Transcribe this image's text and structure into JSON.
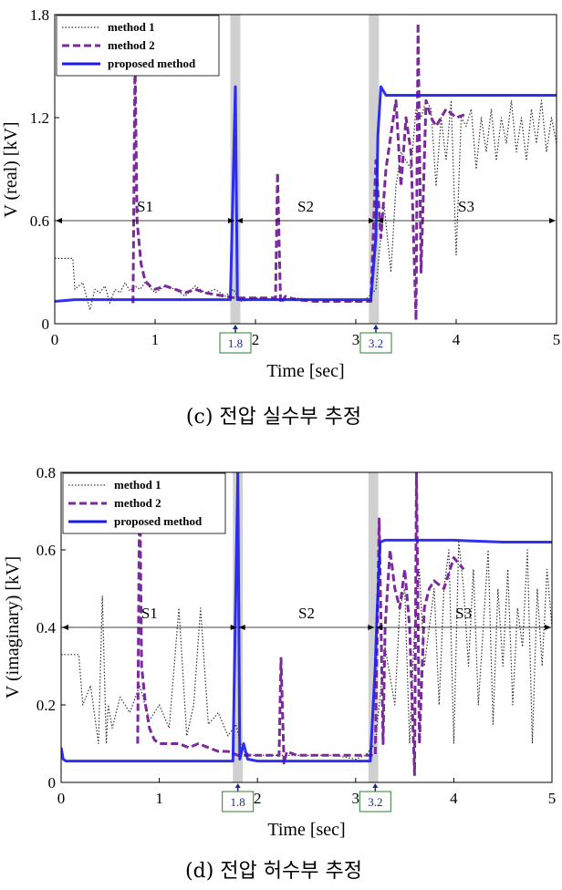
{
  "colors": {
    "method1": "#333333",
    "method2": "#7a2a9a",
    "proposed": "#1a1aee",
    "band": "#d0d0d0",
    "marker_box": "#2e7d32",
    "marker_text": "#1a2a8a"
  },
  "chart_data": [
    {
      "id": "c",
      "type": "line",
      "caption": "(c) 전압 실수부 추정",
      "xlabel": "Time [sec]",
      "ylabel": "V (real) [kV]",
      "xlim": [
        0,
        5
      ],
      "ylim": [
        0,
        1.8
      ],
      "xticks": [
        "0",
        "1",
        "2",
        "3",
        "4",
        "5"
      ],
      "yticks": [
        "0",
        "0.6",
        "1.2",
        "1.8"
      ],
      "legend": {
        "position": "top-left",
        "entries": [
          "method 1",
          "method 2",
          "proposed method"
        ]
      },
      "segments": [
        {
          "label": "S1",
          "from": 0,
          "to": 1.8,
          "y": 0.6
        },
        {
          "label": "S2",
          "from": 1.8,
          "to": 3.2,
          "y": 0.6
        },
        {
          "label": "S3",
          "from": 3.2,
          "to": 5,
          "y": 0.6
        }
      ],
      "markers": [
        "1.8",
        "3.2"
      ],
      "bands": [
        [
          1.75,
          1.85
        ],
        [
          3.13,
          3.23
        ]
      ],
      "series": [
        {
          "name": "method 1",
          "style": "dotted",
          "x": [
            0,
            0.18,
            0.2,
            0.28,
            0.35,
            0.4,
            0.45,
            0.5,
            0.55,
            0.6,
            0.65,
            0.7,
            0.75,
            0.8,
            0.85,
            0.9,
            1.0,
            1.1,
            1.2,
            1.3,
            1.4,
            1.5,
            1.6,
            1.7,
            1.78,
            1.85,
            1.95,
            2.0,
            2.2,
            2.4,
            2.6,
            2.8,
            3.0,
            3.1,
            3.2,
            3.28,
            3.35,
            3.4,
            3.45,
            3.5,
            3.55,
            3.6,
            3.65,
            3.7,
            3.75,
            3.8,
            3.85,
            3.9,
            3.95,
            4.0,
            4.05,
            4.1,
            4.15,
            4.2,
            4.25,
            4.3,
            4.35,
            4.4,
            4.45,
            4.5,
            4.55,
            4.6,
            4.65,
            4.7,
            4.75,
            4.8,
            4.85,
            4.9,
            4.95,
            5.0
          ],
          "y": [
            0.38,
            0.38,
            0.2,
            0.24,
            0.08,
            0.2,
            0.18,
            0.22,
            0.12,
            0.2,
            0.18,
            0.24,
            0.19,
            0.22,
            0.2,
            0.24,
            0.18,
            0.22,
            0.2,
            0.16,
            0.22,
            0.18,
            0.2,
            0.16,
            0.2,
            0.13,
            0.14,
            0.15,
            0.14,
            0.15,
            0.14,
            0.14,
            0.13,
            0.14,
            0.2,
            0.7,
            0.3,
            0.8,
            1.0,
            0.95,
            0.9,
            1.25,
            1.2,
            1.3,
            1.25,
            0.8,
            1.2,
            0.95,
            1.3,
            0.4,
            1.2,
            1.15,
            1.25,
            0.9,
            1.2,
            1.0,
            1.25,
            0.95,
            1.2,
            1.05,
            1.3,
            1.0,
            1.2,
            0.95,
            1.25,
            1.05,
            1.3,
            1.0,
            1.2,
            1.05
          ]
        },
        {
          "name": "method 2",
          "style": "dashed",
          "x": [
            0.78,
            0.8,
            0.82,
            0.86,
            0.9,
            0.95,
            1.0,
            1.1,
            1.2,
            1.3,
            1.4,
            1.5,
            1.6,
            1.7,
            1.8,
            1.85,
            2.2,
            2.22,
            2.25,
            2.3,
            2.4,
            2.6,
            2.8,
            3.0,
            3.15,
            3.2,
            3.25,
            3.3,
            3.35,
            3.4,
            3.45,
            3.5,
            3.55,
            3.6,
            3.62,
            3.65,
            3.7,
            3.75,
            3.8,
            3.9,
            4.0,
            4.1
          ],
          "y": [
            0.12,
            1.55,
            0.6,
            0.35,
            0.25,
            0.22,
            0.2,
            0.22,
            0.2,
            0.18,
            0.2,
            0.18,
            0.17,
            0.16,
            0.15,
            0.15,
            0.15,
            0.88,
            0.12,
            0.16,
            0.14,
            0.13,
            0.13,
            0.13,
            0.13,
            0.95,
            0.5,
            0.9,
            1.1,
            1.3,
            0.8,
            1.2,
            1.0,
            0.02,
            1.75,
            0.3,
            1.3,
            1.2,
            1.15,
            1.25,
            1.2,
            1.22
          ]
        },
        {
          "name": "proposed method",
          "style": "solid",
          "x": [
            0,
            0.2,
            0.5,
            1.0,
            1.5,
            1.75,
            1.8,
            1.82,
            1.85,
            2.0,
            2.5,
            3.0,
            3.15,
            3.2,
            3.22,
            3.25,
            3.3,
            3.5,
            4.0,
            4.5,
            5.0
          ],
          "y": [
            0.13,
            0.14,
            0.14,
            0.14,
            0.14,
            0.14,
            1.38,
            0.14,
            0.14,
            0.14,
            0.14,
            0.14,
            0.14,
            0.5,
            1.1,
            1.38,
            1.33,
            1.33,
            1.33,
            1.33,
            1.33
          ]
        }
      ]
    },
    {
      "id": "d",
      "type": "line",
      "caption": "(d) 전압 허수부 추정",
      "xlabel": "Time [sec]",
      "ylabel": "V (imaginary) [kV]",
      "xlim": [
        0,
        5
      ],
      "ylim": [
        0,
        0.8
      ],
      "xticks": [
        "0",
        "1",
        "2",
        "3",
        "4",
        "5"
      ],
      "yticks": [
        "0",
        "0.2",
        "0.4",
        "0.6",
        "0.8"
      ],
      "legend": {
        "position": "top-left",
        "entries": [
          "method 1",
          "method 2",
          "proposed method"
        ]
      },
      "segments": [
        {
          "label": "S1",
          "from": 0,
          "to": 1.8,
          "y": 0.4
        },
        {
          "label": "S2",
          "from": 1.8,
          "to": 3.2,
          "y": 0.4
        },
        {
          "label": "S3",
          "from": 3.2,
          "to": 5,
          "y": 0.4
        }
      ],
      "markers": [
        "1.8",
        "3.2"
      ],
      "bands": [
        [
          1.75,
          1.85
        ],
        [
          3.13,
          3.23
        ]
      ],
      "series": [
        {
          "name": "method 1",
          "style": "dotted",
          "x": [
            0,
            0.18,
            0.22,
            0.3,
            0.38,
            0.42,
            0.46,
            0.48,
            0.52,
            0.6,
            0.7,
            0.8,
            0.9,
            1.0,
            1.1,
            1.2,
            1.28,
            1.35,
            1.42,
            1.5,
            1.6,
            1.7,
            1.78,
            1.85,
            1.95,
            2.0,
            2.2,
            2.4,
            2.6,
            2.8,
            3.0,
            3.1,
            3.2,
            3.3,
            3.4,
            3.45,
            3.5,
            3.55,
            3.6,
            3.65,
            3.7,
            3.75,
            3.8,
            3.85,
            3.9,
            3.95,
            4.0,
            4.05,
            4.1,
            4.15,
            4.2,
            4.25,
            4.3,
            4.35,
            4.4,
            4.45,
            4.5,
            4.55,
            4.6,
            4.65,
            4.7,
            4.75,
            4.8,
            4.85,
            4.9,
            4.95,
            5.0
          ],
          "y": [
            0.33,
            0.33,
            0.2,
            0.25,
            0.1,
            0.48,
            0.1,
            0.2,
            0.14,
            0.22,
            0.18,
            0.25,
            0.16,
            0.2,
            0.14,
            0.45,
            0.12,
            0.2,
            0.45,
            0.15,
            0.18,
            0.12,
            0.15,
            0.08,
            0.07,
            0.07,
            0.07,
            0.07,
            0.07,
            0.07,
            0.06,
            0.07,
            0.1,
            0.35,
            0.2,
            0.45,
            0.5,
            0.1,
            0.4,
            0.55,
            0.3,
            0.4,
            0.5,
            0.2,
            0.5,
            0.6,
            0.1,
            0.62,
            0.5,
            0.3,
            0.55,
            0.2,
            0.4,
            0.6,
            0.15,
            0.5,
            0.3,
            0.55,
            0.2,
            0.45,
            0.35,
            0.6,
            0.1,
            0.5,
            0.3,
            0.55,
            0.4
          ]
        },
        {
          "name": "method 2",
          "style": "dashed",
          "x": [
            0.78,
            0.8,
            0.82,
            0.86,
            0.9,
            0.95,
            1.0,
            1.1,
            1.2,
            1.3,
            1.4,
            1.5,
            1.6,
            1.7,
            1.8,
            1.85,
            2.22,
            2.24,
            2.27,
            2.3,
            2.4,
            2.6,
            2.8,
            3.0,
            3.2,
            3.24,
            3.28,
            3.3,
            3.35,
            3.4,
            3.45,
            3.5,
            3.55,
            3.6,
            3.62,
            3.65,
            3.7,
            3.75,
            3.8,
            3.9,
            4.0,
            4.1
          ],
          "y": [
            0.1,
            0.8,
            0.3,
            0.2,
            0.14,
            0.11,
            0.1,
            0.1,
            0.1,
            0.09,
            0.1,
            0.09,
            0.08,
            0.08,
            0.07,
            0.07,
            0.07,
            0.32,
            0.05,
            0.08,
            0.07,
            0.07,
            0.07,
            0.07,
            0.07,
            0.68,
            0.1,
            0.4,
            0.6,
            0.5,
            0.45,
            0.55,
            0.4,
            0.02,
            0.8,
            0.1,
            0.45,
            0.5,
            0.52,
            0.5,
            0.58,
            0.55
          ]
        },
        {
          "name": "proposed method",
          "style": "solid",
          "x": [
            0,
            0.02,
            0.05,
            0.2,
            0.5,
            1.0,
            1.5,
            1.75,
            1.8,
            1.82,
            1.86,
            1.9,
            2.0,
            2.5,
            3.0,
            3.15,
            3.2,
            3.22,
            3.25,
            3.3,
            3.5,
            4.0,
            4.5,
            5.0
          ],
          "y": [
            0.09,
            0.06,
            0.055,
            0.055,
            0.055,
            0.055,
            0.055,
            0.055,
            0.8,
            0.06,
            0.1,
            0.06,
            0.055,
            0.055,
            0.055,
            0.055,
            0.3,
            0.45,
            0.62,
            0.625,
            0.625,
            0.625,
            0.62,
            0.62
          ]
        }
      ]
    }
  ]
}
